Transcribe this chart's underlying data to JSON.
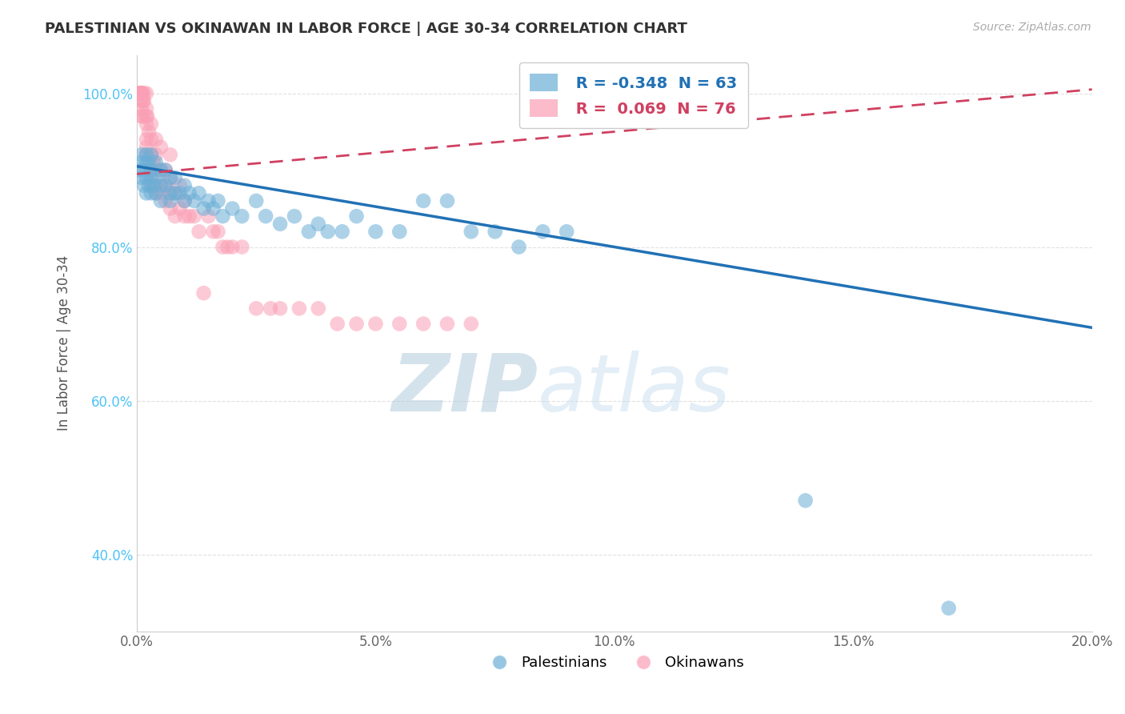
{
  "title": "PALESTINIAN VS OKINAWAN IN LABOR FORCE | AGE 30-34 CORRELATION CHART",
  "source": "Source: ZipAtlas.com",
  "xlabel": "",
  "ylabel": "In Labor Force | Age 30-34",
  "xlim": [
    0.0,
    0.2
  ],
  "ylim": [
    0.3,
    1.05
  ],
  "xticks": [
    0.0,
    0.05,
    0.1,
    0.15,
    0.2
  ],
  "xtick_labels": [
    "0.0%",
    "5.0%",
    "10.0%",
    "15.0%",
    "20.0%"
  ],
  "yticks": [
    0.4,
    0.6,
    0.8,
    1.0
  ],
  "ytick_labels": [
    "40.0%",
    "60.0%",
    "80.0%",
    "100.0%"
  ],
  "legend_blue_label": "Palestinians",
  "legend_pink_label": "Okinawans",
  "R_blue": -0.348,
  "N_blue": 63,
  "R_pink": 0.069,
  "N_pink": 76,
  "blue_color": "#6baed6",
  "pink_color": "#fa9fb5",
  "blue_line_color": "#2171b5",
  "pink_line_color": "#d04060",
  "watermark_ZIP": "ZIP",
  "watermark_atlas": "atlas",
  "background_color": "#ffffff",
  "grid_color": "#dddddd",
  "blue_line_x": [
    0.0,
    0.2
  ],
  "blue_line_y": [
    0.905,
    0.695
  ],
  "pink_line_x": [
    0.0,
    0.2
  ],
  "pink_line_y": [
    0.895,
    1.005
  ],
  "blue_scatter_x": [
    0.0005,
    0.001,
    0.001,
    0.001,
    0.0015,
    0.0015,
    0.002,
    0.002,
    0.002,
    0.002,
    0.0025,
    0.0025,
    0.003,
    0.003,
    0.003,
    0.003,
    0.0035,
    0.004,
    0.004,
    0.004,
    0.005,
    0.005,
    0.005,
    0.006,
    0.006,
    0.007,
    0.007,
    0.007,
    0.008,
    0.008,
    0.009,
    0.01,
    0.01,
    0.011,
    0.012,
    0.013,
    0.014,
    0.015,
    0.016,
    0.017,
    0.018,
    0.02,
    0.022,
    0.025,
    0.027,
    0.03,
    0.033,
    0.036,
    0.038,
    0.04,
    0.043,
    0.046,
    0.05,
    0.055,
    0.06,
    0.065,
    0.07,
    0.075,
    0.08,
    0.085,
    0.09,
    0.14,
    0.17
  ],
  "blue_scatter_y": [
    0.9,
    0.92,
    0.89,
    0.91,
    0.88,
    0.9,
    0.87,
    0.89,
    0.91,
    0.92,
    0.88,
    0.91,
    0.87,
    0.89,
    0.9,
    0.92,
    0.88,
    0.87,
    0.89,
    0.91,
    0.88,
    0.9,
    0.86,
    0.88,
    0.9,
    0.87,
    0.89,
    0.86,
    0.87,
    0.89,
    0.87,
    0.88,
    0.86,
    0.87,
    0.86,
    0.87,
    0.85,
    0.86,
    0.85,
    0.86,
    0.84,
    0.85,
    0.84,
    0.86,
    0.84,
    0.83,
    0.84,
    0.82,
    0.83,
    0.82,
    0.82,
    0.84,
    0.82,
    0.82,
    0.86,
    0.86,
    0.82,
    0.82,
    0.8,
    0.82,
    0.82,
    0.47,
    0.33
  ],
  "pink_scatter_x": [
    0.0003,
    0.0005,
    0.0005,
    0.0007,
    0.0008,
    0.001,
    0.001,
    0.001,
    0.001,
    0.001,
    0.001,
    0.001,
    0.0012,
    0.0013,
    0.0015,
    0.0015,
    0.002,
    0.002,
    0.002,
    0.002,
    0.002,
    0.002,
    0.002,
    0.0022,
    0.0025,
    0.003,
    0.003,
    0.003,
    0.003,
    0.003,
    0.0035,
    0.004,
    0.004,
    0.004,
    0.004,
    0.004,
    0.005,
    0.005,
    0.005,
    0.005,
    0.006,
    0.006,
    0.006,
    0.007,
    0.007,
    0.007,
    0.007,
    0.008,
    0.008,
    0.009,
    0.009,
    0.01,
    0.01,
    0.011,
    0.012,
    0.013,
    0.014,
    0.015,
    0.016,
    0.017,
    0.018,
    0.019,
    0.02,
    0.022,
    0.025,
    0.028,
    0.03,
    0.034,
    0.038,
    0.042,
    0.046,
    0.05,
    0.055,
    0.06,
    0.065,
    0.07
  ],
  "pink_scatter_y": [
    1.0,
    1.0,
    1.0,
    1.0,
    1.0,
    0.97,
    0.98,
    0.99,
    1.0,
    1.0,
    1.0,
    1.0,
    0.97,
    0.99,
    0.99,
    1.0,
    0.92,
    0.93,
    0.94,
    0.96,
    0.97,
    0.98,
    1.0,
    0.97,
    0.95,
    0.88,
    0.9,
    0.92,
    0.94,
    0.96,
    0.91,
    0.87,
    0.88,
    0.9,
    0.92,
    0.94,
    0.87,
    0.88,
    0.9,
    0.93,
    0.86,
    0.88,
    0.9,
    0.85,
    0.87,
    0.89,
    0.92,
    0.84,
    0.87,
    0.85,
    0.88,
    0.84,
    0.86,
    0.84,
    0.84,
    0.82,
    0.74,
    0.84,
    0.82,
    0.82,
    0.8,
    0.8,
    0.8,
    0.8,
    0.72,
    0.72,
    0.72,
    0.72,
    0.72,
    0.7,
    0.7,
    0.7,
    0.7,
    0.7,
    0.7,
    0.7
  ]
}
